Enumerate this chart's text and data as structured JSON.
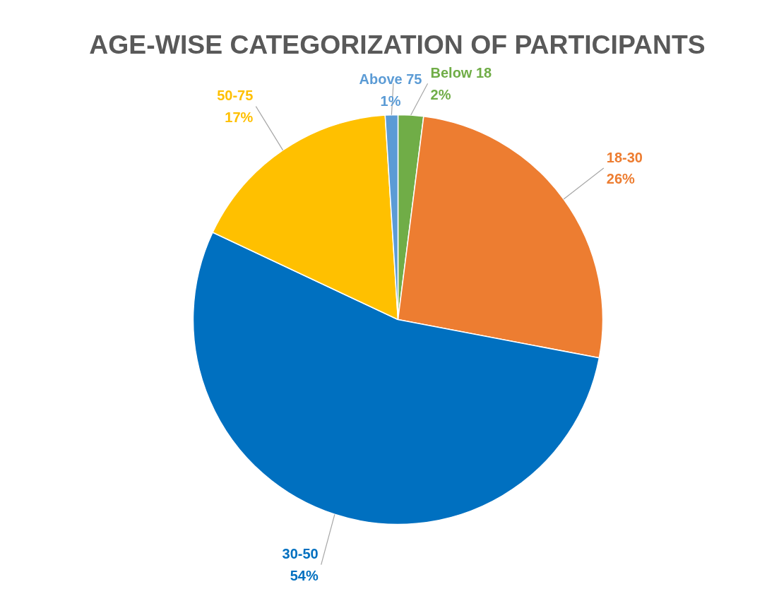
{
  "chart_data": {
    "type": "pie",
    "title": "AGE-WISE CATEGORIZATION OF PARTICIPANTS",
    "categories": [
      "Below 18",
      "18-30",
      "30-50",
      "50-75",
      "Above 75"
    ],
    "values": [
      2,
      26,
      54,
      17,
      1
    ],
    "value_labels": [
      "2%",
      "26%",
      "54%",
      "17%",
      "1%"
    ],
    "colors": [
      "#70ad47",
      "#ed7d31",
      "#0070c0",
      "#ffc000",
      "#5b9bd5"
    ],
    "legend": false
  }
}
